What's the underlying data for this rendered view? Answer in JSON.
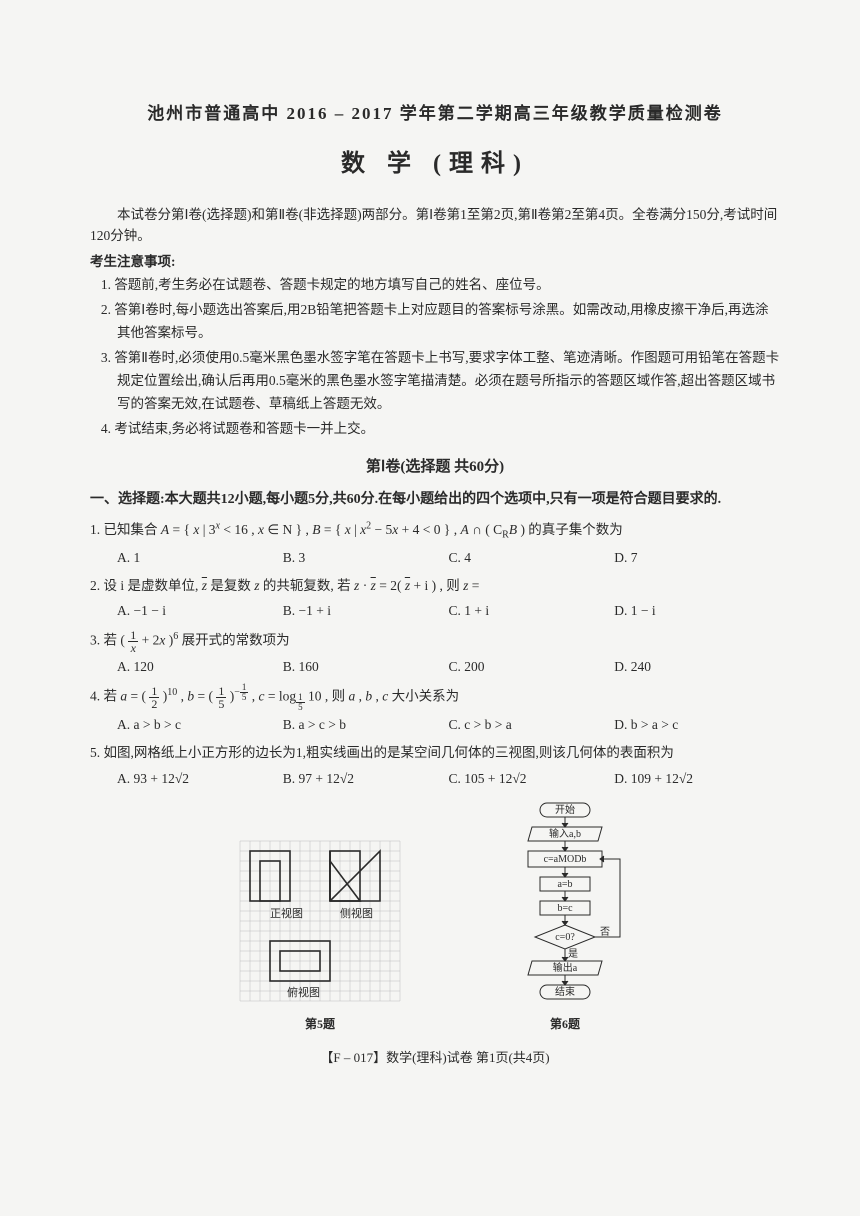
{
  "header": {
    "title_line": "池州市普通高中 2016 – 2017 学年第二学期高三年级教学质量检测卷",
    "subject": "数 学 (理科)"
  },
  "intro": "本试卷分第Ⅰ卷(选择题)和第Ⅱ卷(非选择题)两部分。第Ⅰ卷第1至第2页,第Ⅱ卷第2至第4页。全卷满分150分,考试时间120分钟。",
  "notice_head": "考生注意事项:",
  "notices": [
    "1. 答题前,考生务必在试题卷、答题卡规定的地方填写自己的姓名、座位号。",
    "2. 答第Ⅰ卷时,每小题选出答案后,用2B铅笔把答题卡上对应题目的答案标号涂黑。如需改动,用橡皮擦干净后,再选涂其他答案标号。",
    "3. 答第Ⅱ卷时,必须使用0.5毫米黑色墨水签字笔在答题卡上书写,要求字体工整、笔迹清晰。作图题可用铅笔在答题卡规定位置绘出,确认后再用0.5毫米的黑色墨水签字笔描清楚。必须在题号所指示的答题区域作答,超出答题区域书写的答案无效,在试题卷、草稿纸上答题无效。",
    "4. 考试结束,务必将试题卷和答题卡一并上交。"
  ],
  "section1_title": "第Ⅰ卷(选择题 共60分)",
  "choice_instr": "一、选择题:本大题共12小题,每小题5分,共60分.在每小题给出的四个选项中,只有一项是符合题目要求的.",
  "q1": {
    "stem": "1. 已知集合 A = { x | 3ˣ < 16 , x ∈ N } , B = { x | x² − 5x + 4 < 0 } , A ∩ ( C<sub>R</sub> B ) 的真子集个数为",
    "A": "A. 1",
    "B": "B. 3",
    "C": "C. 4",
    "D": "D. 7"
  },
  "q2": {
    "stem_pre": "2. 设 i 是虚数单位, ",
    "stem_post": " 是复数 z 的共轭复数, 若 z · ",
    "stem_end": " = 2( ",
    "stem_tail": " + i ) , 则 z =",
    "A": "A. −1 − i",
    "B": "B. −1 + i",
    "C": "C. 1 + i",
    "D": "D. 1 − i"
  },
  "q3": {
    "stem": "3. 若 ( 1/x + 2x )⁶ 展开式的常数项为",
    "A": "A. 120",
    "B": "B. 160",
    "C": "C. 200",
    "D": "D. 240"
  },
  "q4": {
    "stem": "4. 若 a = (1/2)¹⁰ , b = (1/5)⁻¹ᐟ⁵ , c = log₁/₅ 10 , 则 a , b , c 大小关系为",
    "A": "A. a > b > c",
    "B": "B. a > c > b",
    "C": "C. c > b > a",
    "D": "D. b > a > c"
  },
  "q5": {
    "stem": "5. 如图,网格纸上小正方形的边长为1,粗实线画出的是某空间几何体的三视图,则该几何体的表面积为",
    "A": "A. 93 + 12√2",
    "B": "B. 97 + 12√2",
    "C": "C. 105 + 12√2",
    "D": "D. 109 + 12√2"
  },
  "fig5": {
    "label": "第5题",
    "front": "正视图",
    "side": "侧视图",
    "top": "俯视图",
    "grid_color": "#bdbdbd",
    "line_color": "#2a2a2a",
    "grid_step": 10
  },
  "fig6": {
    "label": "第6题",
    "t_start": "开始",
    "t_input": "输入a,b",
    "t_mod": "c=aMODb",
    "t_ab": "a=b",
    "t_bc": "b=c",
    "t_cond": "c=0?",
    "t_yes": "是",
    "t_no": "否",
    "t_out": "输出a",
    "t_end": "结束",
    "line_color": "#2a2a2a"
  },
  "footer": "【F – 017】数学(理科)试卷 第1页(共4页)"
}
